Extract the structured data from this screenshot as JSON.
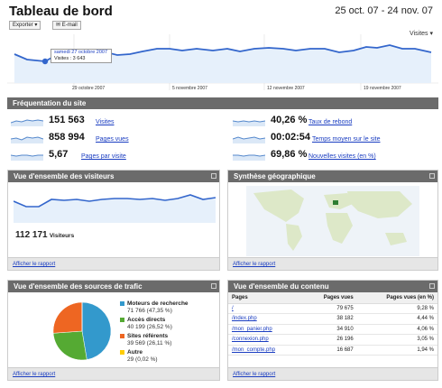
{
  "header": {
    "title": "Tableau de bord",
    "date_range": "25 oct. 07 - 24 nov. 07",
    "export_label": "Exporter ▾",
    "email_label": "E-mail"
  },
  "main_chart": {
    "metric_selector": "Visites ▾",
    "x_labels": [
      "29 octobre 2007",
      "5 novembre 2007",
      "12 novembre 2007",
      "19 novembre 2007"
    ],
    "tooltip_date": "samedi 27 octobre 2007",
    "tooltip_value": "Visites : 3 643",
    "line_color": "#3366cc",
    "fill_color": "#e6f0fb"
  },
  "frequentation": {
    "title": "Fréquentation du site",
    "kpis": [
      {
        "value": "151 563",
        "label": "Visites"
      },
      {
        "value": "858 994",
        "label": "Pages vues"
      },
      {
        "value": "5,67",
        "label": "Pages par visite"
      },
      {
        "value": "40,26 %",
        "label": "Taux de rebond"
      },
      {
        "value": "00:02:54",
        "label": "Temps moyen sur le site"
      },
      {
        "value": "69,86 %",
        "label": "Nouvelles visites (en %)"
      }
    ]
  },
  "visitors": {
    "title": "Vue d'ensemble des visiteurs",
    "count": "112 171",
    "count_label": "Visiteurs",
    "link": "Afficher le rapport"
  },
  "geo": {
    "title": "Synthèse géographique",
    "link": "Afficher le rapport"
  },
  "traffic": {
    "title": "Vue d'ensemble des sources de trafic",
    "link": "Afficher le rapport",
    "sources": [
      {
        "name": "Moteurs de recherche",
        "stat": "71 766 (47,35 %)",
        "share": 47.35,
        "color": "#3399cc"
      },
      {
        "name": "Accès directs",
        "stat": "40 199 (26,52 %)",
        "share": 26.52,
        "color": "#55aa33"
      },
      {
        "name": "Sites référents",
        "stat": "39 569 (26,11 %)",
        "share": 26.11,
        "color": "#ee6622"
      },
      {
        "name": "Autre",
        "stat": "29 (0,02 %)",
        "share": 0.02,
        "color": "#ffcc00"
      }
    ]
  },
  "content": {
    "title": "Vue d'ensemble du contenu",
    "link": "Afficher le rapport",
    "columns": [
      "Pages",
      "Pages vues",
      "Pages vues (en %)"
    ],
    "rows": [
      {
        "page": "/",
        "views": "79 675",
        "pct": "9,28 %"
      },
      {
        "page": "/index.php",
        "views": "38 182",
        "pct": "4,44 %"
      },
      {
        "page": "/mon_panier.php",
        "views": "34 910",
        "pct": "4,06 %"
      },
      {
        "page": "/connexion.php",
        "views": "26 196",
        "pct": "3,05 %"
      },
      {
        "page": "/mon_compte.php",
        "views": "16 687",
        "pct": "1,94 %"
      }
    ]
  }
}
